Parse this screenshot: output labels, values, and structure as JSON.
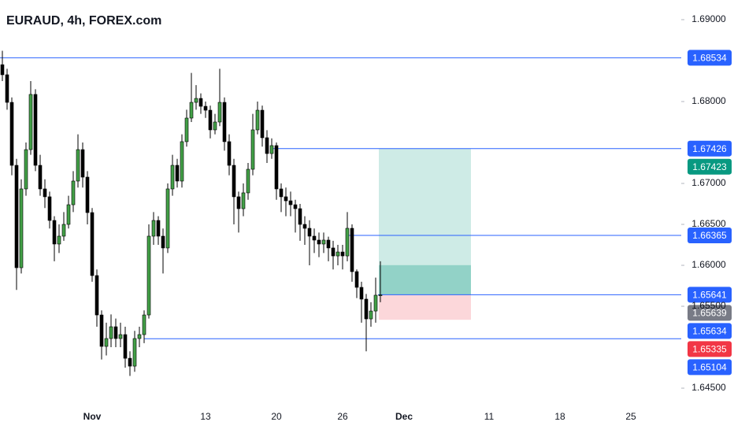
{
  "chart_data": {
    "type": "candlestick",
    "title": "EURAUD, 4h, FOREX.com",
    "categories": [
      null,
      null,
      null,
      null,
      null,
      null,
      null,
      null,
      null,
      null,
      null,
      null,
      null,
      null,
      null,
      null,
      null,
      null,
      null,
      "Nov",
      null,
      null,
      null,
      null,
      null,
      null,
      null,
      null,
      null,
      null,
      null,
      null,
      null,
      null,
      null,
      null,
      null,
      null,
      null,
      null,
      null,
      null,
      null,
      "13",
      null,
      null,
      null,
      null,
      null,
      null,
      null,
      null,
      null,
      null,
      null,
      null,
      null,
      null,
      "20",
      null,
      null,
      null,
      null,
      null,
      null,
      null,
      null,
      null,
      null,
      null,
      null,
      null,
      "26",
      null,
      null,
      null,
      null,
      null,
      null,
      null,
      null,
      null,
      null,
      null,
      null,
      "Dec",
      null,
      null,
      null,
      null,
      null,
      null,
      null,
      null,
      null,
      null,
      null,
      null,
      null,
      null,
      null,
      null,
      null,
      "11",
      null,
      null,
      null,
      null,
      null,
      null,
      null,
      null,
      null,
      null,
      null,
      null,
      null,
      null,
      "18",
      null,
      null,
      null,
      null,
      null,
      null,
      null,
      null,
      null,
      null,
      null,
      null,
      null,
      null,
      "25",
      null,
      null,
      null,
      null,
      null,
      null,
      null,
      null,
      null
    ],
    "open": [
      1.6845,
      1.68327,
      1.6799,
      1.67221,
      1.65971,
      1.66933,
      1.67413,
      1.68087,
      1.67221,
      1.66933,
      1.66837,
      1.66548,
      1.6626,
      1.66356,
      1.665,
      1.6674,
      1.67029,
      1.67413,
      1.67077,
      1.66644,
      1.65875,
      1.65394,
      1.6501,
      1.65106,
      1.6525,
      1.65106,
      1.65154,
      1.64865,
      1.64769,
      1.65106,
      1.65154,
      1.65394,
      1.66356,
      1.66548,
      1.66356,
      1.66212,
      1.66933,
      1.67221,
      1.67029,
      1.6751,
      1.67798,
      1.6799,
      1.68038,
      1.67942,
      1.67894,
      1.67654,
      1.6775,
      1.6799,
      1.6751,
      1.67221,
      1.66837,
      1.66692,
      1.66885,
      1.67173,
      1.67654,
      1.67894,
      1.67558,
      1.67365,
      1.67462,
      1.66933,
      1.66837,
      1.66788,
      1.6674,
      1.66692,
      1.665,
      1.66452,
      1.66356,
      1.66308,
      1.6626,
      1.66308,
      1.66212,
      1.66115,
      1.66163,
      1.66115,
      1.66452,
      1.65923,
      1.65731,
      1.65587,
      1.65346,
      1.65442,
      1.65635,
      null,
      null,
      null,
      null,
      null,
      null,
      null,
      null,
      null,
      null,
      null,
      null,
      null,
      null,
      null,
      null,
      null,
      null,
      null,
      null,
      null,
      null,
      null,
      null,
      null,
      null,
      null,
      null,
      null,
      null,
      null,
      null,
      null,
      null,
      null,
      null,
      null,
      null,
      null,
      null,
      null,
      null,
      null,
      null,
      null,
      null,
      null,
      null,
      null,
      null,
      null,
      null,
      null,
      null,
      null,
      null,
      null,
      null,
      null,
      null,
      null,
      null
    ],
    "high": [
      1.6862,
      1.684,
      1.6805,
      1.673,
      1.6705,
      1.675,
      1.6825,
      1.6815,
      1.6735,
      1.6705,
      1.669,
      1.666,
      1.665,
      1.6665,
      1.6685,
      1.6715,
      1.676,
      1.675,
      1.6715,
      1.667,
      1.6595,
      1.6545,
      1.653,
      1.654,
      1.6535,
      1.653,
      1.6525,
      1.6495,
      1.652,
      1.6525,
      1.6545,
      1.665,
      1.6665,
      1.666,
      1.6645,
      1.67,
      1.6735,
      1.673,
      1.676,
      1.679,
      1.6835,
      1.682,
      1.681,
      1.68,
      1.6795,
      1.6785,
      1.684,
      1.6805,
      1.676,
      1.673,
      1.669,
      1.67,
      1.6725,
      1.6785,
      1.68,
      1.6795,
      1.6765,
      1.6755,
      1.675,
      1.67,
      1.6695,
      1.669,
      1.668,
      1.6675,
      1.666,
      1.6655,
      1.6645,
      1.664,
      1.664,
      1.6635,
      1.663,
      1.6625,
      1.6625,
      1.6665,
      1.665,
      1.6595,
      1.658,
      1.6565,
      1.6555,
      1.6585,
      1.6605,
      null,
      null,
      null,
      null,
      null,
      null,
      null,
      null,
      null,
      null,
      null,
      null,
      null,
      null,
      null,
      null,
      null,
      null,
      null,
      null,
      null,
      null,
      null,
      null,
      null,
      null,
      null,
      null,
      null,
      null,
      null,
      null,
      null,
      null,
      null,
      null,
      null,
      null,
      null,
      null,
      null,
      null,
      null,
      null,
      null,
      null,
      null,
      null,
      null,
      null,
      null,
      null,
      null,
      null,
      null,
      null,
      null,
      null,
      null,
      null,
      null,
      null
    ],
    "low": [
      1.6825,
      1.679,
      1.671,
      1.657,
      1.659,
      1.6685,
      1.6735,
      1.6715,
      1.6685,
      1.667,
      1.6645,
      1.6605,
      1.6615,
      1.663,
      1.6645,
      1.6665,
      1.6695,
      1.6695,
      1.665,
      1.658,
      1.6525,
      1.6485,
      1.649,
      1.65,
      1.65,
      1.65,
      1.6475,
      1.6465,
      1.647,
      1.65,
      1.6505,
      1.6535,
      1.6625,
      1.6625,
      1.659,
      1.6615,
      1.6685,
      1.6695,
      1.6695,
      1.6745,
      1.6775,
      1.679,
      1.6785,
      1.678,
      1.6755,
      1.676,
      1.677,
      1.674,
      1.671,
      1.665,
      1.664,
      1.666,
      1.668,
      1.671,
      1.676,
      1.6745,
      1.6725,
      1.673,
      1.668,
      1.6665,
      1.666,
      1.666,
      1.664,
      1.663,
      1.6625,
      1.66,
      1.6615,
      1.661,
      1.6615,
      1.6605,
      1.6595,
      1.66,
      1.6595,
      1.6605,
      1.658,
      1.656,
      1.653,
      1.6495,
      1.6525,
      1.653,
      1.6555,
      null,
      null,
      null,
      null,
      null,
      null,
      null,
      null,
      null,
      null,
      null,
      null,
      null,
      null,
      null,
      null,
      null,
      null,
      null,
      null,
      null,
      null,
      null,
      null,
      null,
      null,
      null,
      null,
      null,
      null,
      null,
      null,
      null,
      null,
      null,
      null,
      null,
      null,
      null,
      null,
      null,
      null,
      null,
      null,
      null,
      null,
      null,
      null,
      null,
      null,
      null,
      null,
      null,
      null,
      null,
      null,
      null,
      null,
      null,
      null,
      null,
      null
    ],
    "close": [
      1.68327,
      1.6799,
      1.67221,
      1.65971,
      1.66933,
      1.67413,
      1.68087,
      1.67221,
      1.66933,
      1.66837,
      1.66548,
      1.6626,
      1.66356,
      1.665,
      1.6674,
      1.67029,
      1.67413,
      1.67077,
      1.66644,
      1.65875,
      1.65394,
      1.6501,
      1.65106,
      1.6525,
      1.65106,
      1.65154,
      1.64865,
      1.64769,
      1.65106,
      1.65154,
      1.65394,
      1.66356,
      1.66548,
      1.66356,
      1.66212,
      1.66933,
      1.67221,
      1.67029,
      1.6751,
      1.67798,
      1.6799,
      1.68038,
      1.67942,
      1.67894,
      1.67654,
      1.6775,
      1.6799,
      1.6751,
      1.67221,
      1.66837,
      1.66692,
      1.66885,
      1.67173,
      1.67654,
      1.67894,
      1.67558,
      1.67365,
      1.67462,
      1.66933,
      1.66837,
      1.66788,
      1.6674,
      1.66692,
      1.665,
      1.66452,
      1.66356,
      1.66308,
      1.6626,
      1.66308,
      1.66212,
      1.66115,
      1.66163,
      1.66115,
      1.66452,
      1.65923,
      1.65731,
      1.65587,
      1.65346,
      1.65442,
      1.65635,
      1.65639,
      null,
      null,
      null,
      null,
      null,
      null,
      null,
      null,
      null,
      null,
      null,
      null,
      null,
      null,
      null,
      null,
      null,
      null,
      null,
      null,
      null,
      null,
      null,
      null,
      null,
      null,
      null,
      null,
      null,
      null,
      null,
      null,
      null,
      null,
      null,
      null,
      null,
      null,
      null,
      null,
      null,
      null,
      null,
      null,
      null,
      null,
      null,
      null,
      null,
      null,
      null,
      null,
      null,
      null,
      null,
      null,
      null,
      null,
      null,
      null,
      null,
      null
    ],
    "up_color": "#43a047",
    "down_color": "#000000",
    "ylim": [
      1.64337,
      1.6924
    ],
    "yticks": [
      {
        "value": 1.645,
        "label": "1.64500"
      },
      {
        "value": 1.655,
        "label": "1.65500"
      },
      {
        "value": 1.66,
        "label": "1.66000"
      },
      {
        "value": 1.665,
        "label": "1.66500"
      },
      {
        "value": 1.67,
        "label": "1.67000"
      },
      {
        "value": 1.68,
        "label": "1.68000"
      },
      {
        "value": 1.69,
        "label": "1.69000"
      }
    ],
    "levels": [
      {
        "value": 1.68534,
        "color": "#2962ff"
      },
      {
        "value": 1.67426,
        "color": "#2962ff"
      },
      {
        "value": 1.67423,
        "color": "#089981"
      },
      {
        "value": 1.66365,
        "color": "#2962ff"
      },
      {
        "value": 1.65641,
        "color": "#2962ff"
      },
      {
        "value": 1.65639,
        "color": "#787b86"
      },
      {
        "value": 1.65634,
        "color": "#2962ff"
      },
      {
        "value": 1.65335,
        "color": "#f23645"
      },
      {
        "value": 1.65104,
        "color": "#2962ff"
      }
    ]
  }
}
